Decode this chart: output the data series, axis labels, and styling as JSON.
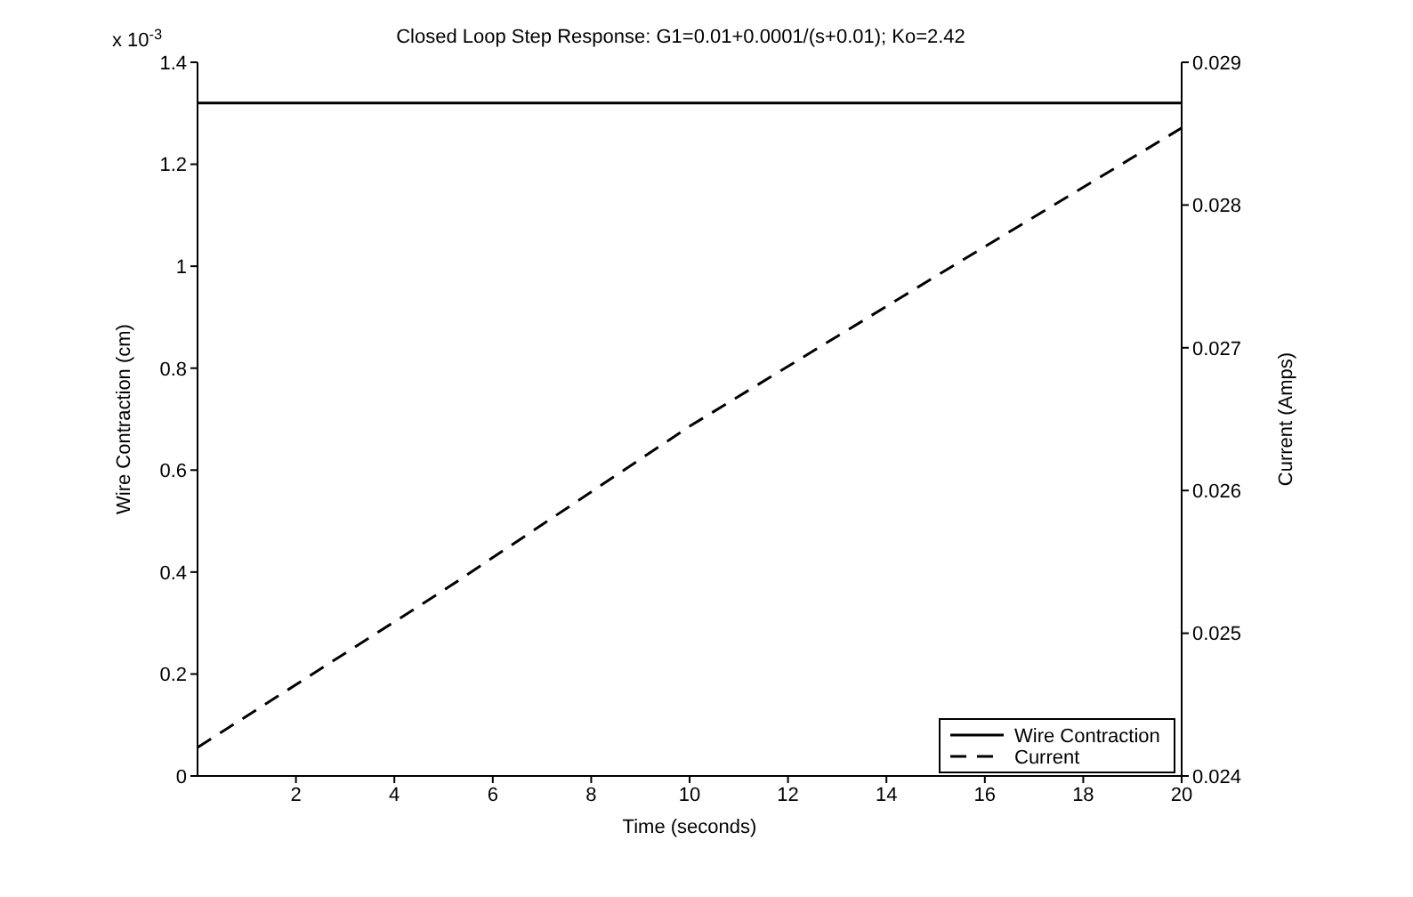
{
  "chart_data": {
    "type": "line",
    "title": "Closed Loop Step Response: G1=0.01+0.0001/(s+0.01); Ko=2.42",
    "xlabel": "Time (seconds)",
    "ylabel": "Wire Contraction (cm)",
    "y2label": "Current (Amps)",
    "annotations": [
      "x 10$^{-3}$"
    ],
    "xlim": [
      0,
      20
    ],
    "xticks": [
      2,
      4,
      6,
      8,
      10,
      12,
      14,
      16,
      18,
      20
    ],
    "ylim": [
      0,
      1.4
    ],
    "yticks": [
      0,
      0.2,
      0.4,
      0.6,
      0.8,
      1,
      1.2,
      1.4
    ],
    "y2lim": [
      0.024,
      0.029
    ],
    "y2ticks": [
      0.024,
      0.025,
      0.026,
      0.027,
      0.028,
      0.029
    ],
    "legend": "bottom right",
    "marker": "none",
    "series": [
      {
        "name": "Wire Contraction",
        "color": "#000000",
        "x": [
          0,
          20
        ],
        "values": [
          1.32,
          1.32
        ],
        "line_style": "solid"
      },
      {
        "name": "Current",
        "color": "#000000",
        "axis": "y2",
        "x": [
          0,
          5,
          10,
          15,
          20
        ],
        "values": [
          0.0242,
          0.0253,
          0.02645,
          0.0275,
          0.02854
        ],
        "line_style": "dashed"
      }
    ]
  }
}
